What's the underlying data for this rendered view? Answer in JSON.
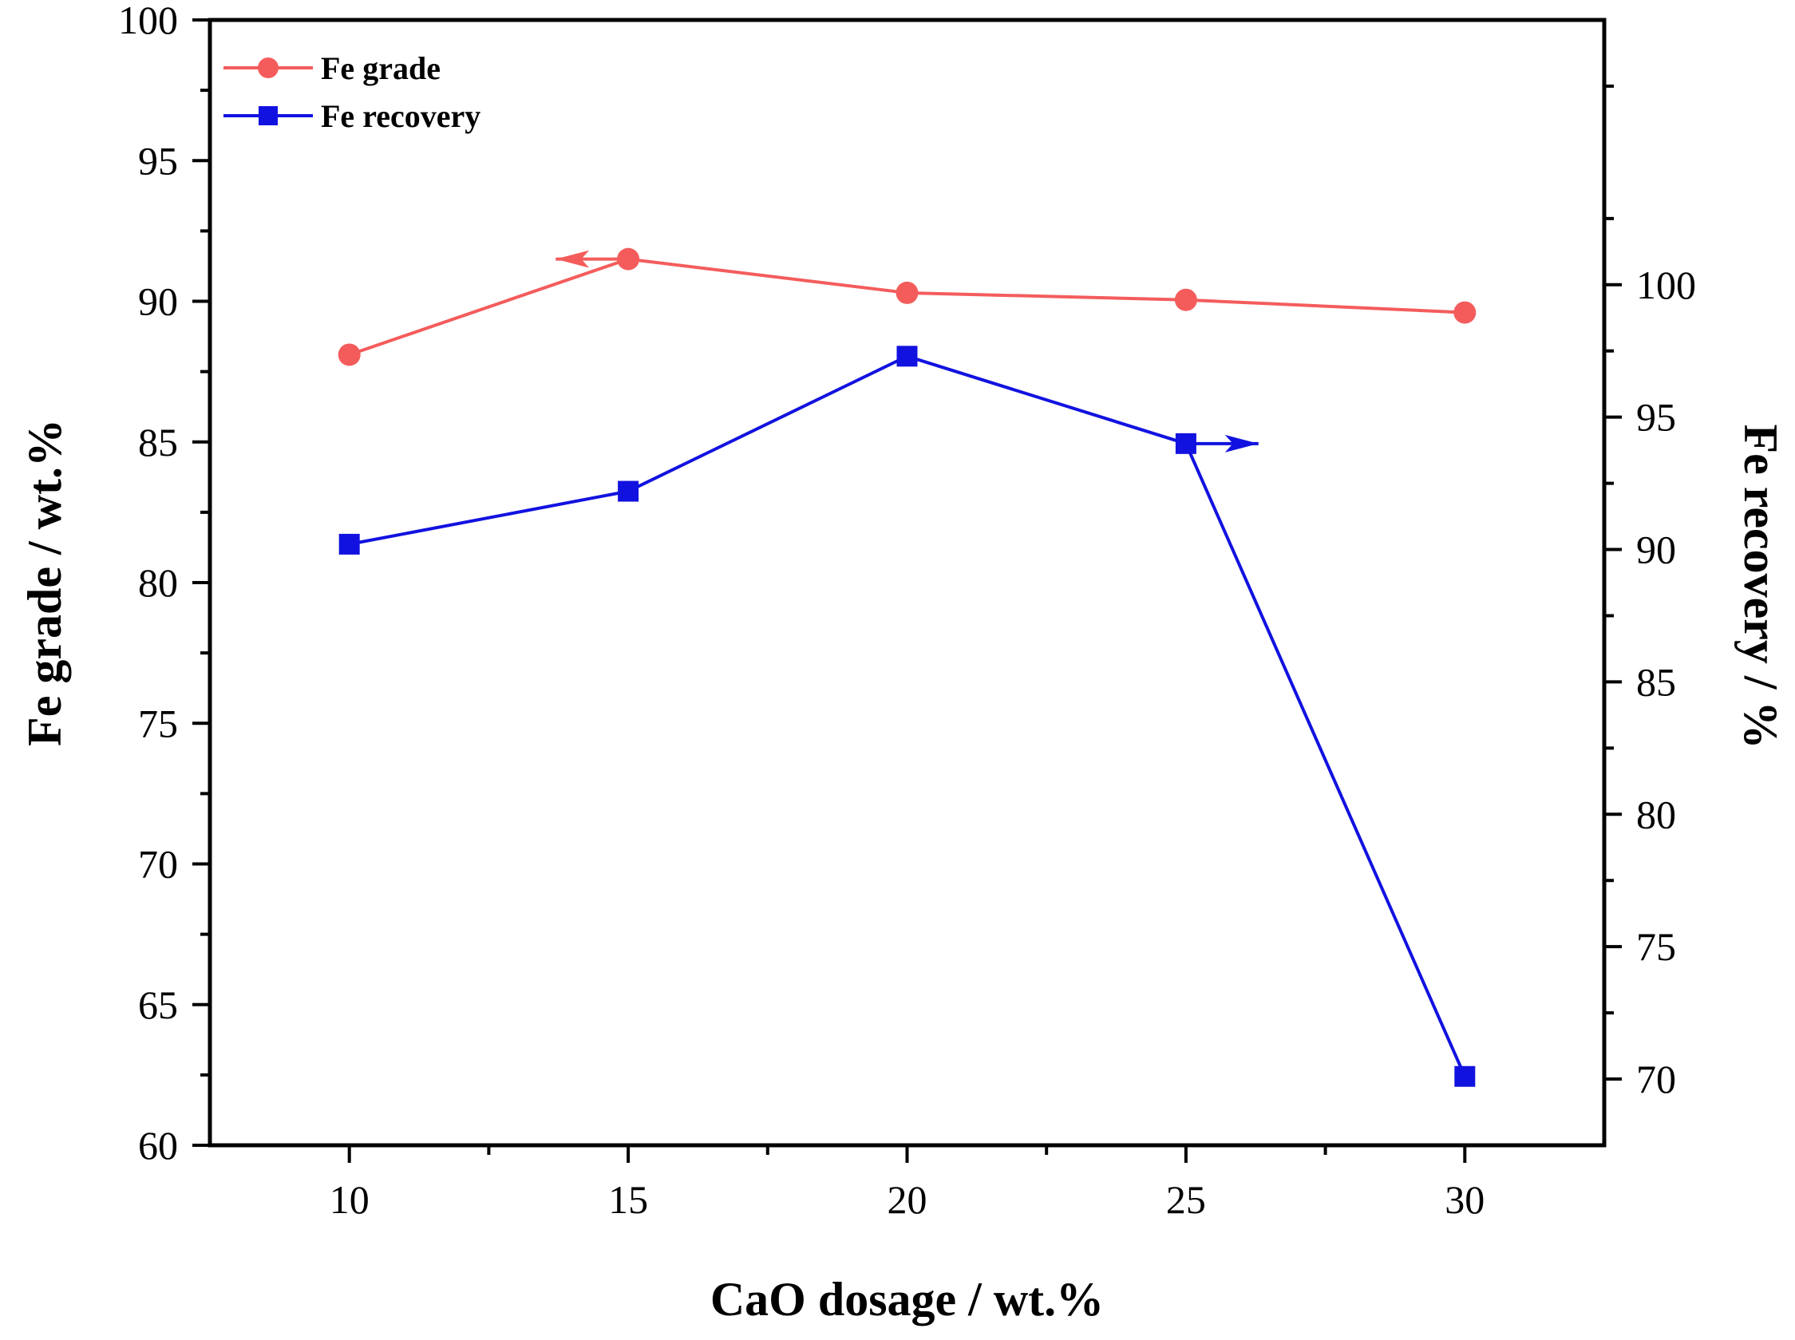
{
  "chart_data": {
    "type": "line",
    "title": "",
    "xlabel": "CaO dosage / wt.%",
    "ylabel": "Fe grade / wt.%",
    "y2label": "Fe recovery / %",
    "xlim": [
      7.5,
      32.5
    ],
    "ylim": [
      60,
      100
    ],
    "y2lim": [
      67.5,
      110
    ],
    "x_ticks": [
      10,
      15,
      20,
      25,
      30
    ],
    "y_ticks": [
      60,
      65,
      70,
      75,
      80,
      85,
      90,
      95,
      100
    ],
    "y2_ticks": [
      70,
      75,
      80,
      85,
      90,
      95,
      100
    ],
    "legend_position": "top-left",
    "series": [
      {
        "name": "Fe grade",
        "axis": "left",
        "color": "#f45c5c",
        "marker": "circle",
        "x": [
          10,
          15,
          20,
          25,
          30
        ],
        "values": [
          88.1,
          91.5,
          90.3,
          90.05,
          89.6
        ],
        "arrow": {
          "direction": "left",
          "at_x": 15,
          "to_x": 13.7
        }
      },
      {
        "name": "Fe recovery",
        "axis": "right",
        "color": "#1212e0",
        "marker": "square",
        "x": [
          10,
          15,
          20,
          25,
          30
        ],
        "values": [
          90.2,
          92.2,
          97.3,
          94.0,
          70.1
        ],
        "arrow": {
          "direction": "right",
          "at_x": 25,
          "to_x": 26.3
        }
      }
    ]
  }
}
